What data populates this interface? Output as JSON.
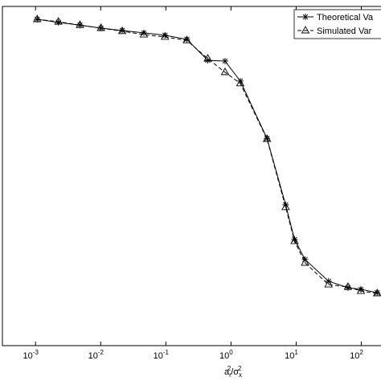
{
  "chart_data": {
    "type": "line",
    "x_label": {
      "parts": [
        "a",
        "r",
        "2",
        "/σ",
        "x",
        "2"
      ]
    },
    "x": [
      0.00106,
      0.00224,
      0.0048,
      0.0101,
      0.0214,
      0.046,
      0.097,
      0.21,
      0.44,
      0.81,
      1.39,
      3.57,
      6.9,
      9.45,
      13.7,
      31.4,
      62.4,
      98.6,
      175
    ],
    "series": [
      {
        "name": "Theoretical Va",
        "color": "#000000",
        "marker": "star",
        "dash": false,
        "values": [
          0.962,
          0.953,
          0.945,
          0.936,
          0.929,
          0.922,
          0.915,
          0.903,
          0.841,
          0.839,
          0.78,
          0.611,
          0.415,
          0.313,
          0.254,
          0.19,
          0.171,
          0.166,
          0.156
        ]
      },
      {
        "name": "Simulated Var",
        "color": "#000000",
        "marker": "triangle",
        "dash": true,
        "values": [
          0.962,
          0.955,
          0.945,
          0.936,
          0.927,
          0.917,
          0.91,
          0.9,
          0.846,
          0.806,
          0.773,
          0.609,
          0.408,
          0.308,
          0.244,
          0.18,
          0.173,
          0.161,
          0.154
        ]
      }
    ],
    "xscale": "log",
    "xlim": [
      0.00031,
      195
    ],
    "xticks": [
      {
        "value": 0.001,
        "label": "10",
        "exponent": "-3"
      },
      {
        "value": 0.01,
        "label": "10",
        "exponent": "-2"
      },
      {
        "value": 0.1,
        "label": "10",
        "exponent": "-1"
      },
      {
        "value": 1,
        "label": "10",
        "exponent": "0"
      },
      {
        "value": 10,
        "label": "10",
        "exponent": "1"
      },
      {
        "value": 100,
        "label": "10",
        "exponent": "2"
      }
    ],
    "ylim": [
      0,
      1
    ],
    "legend": "upper right"
  }
}
